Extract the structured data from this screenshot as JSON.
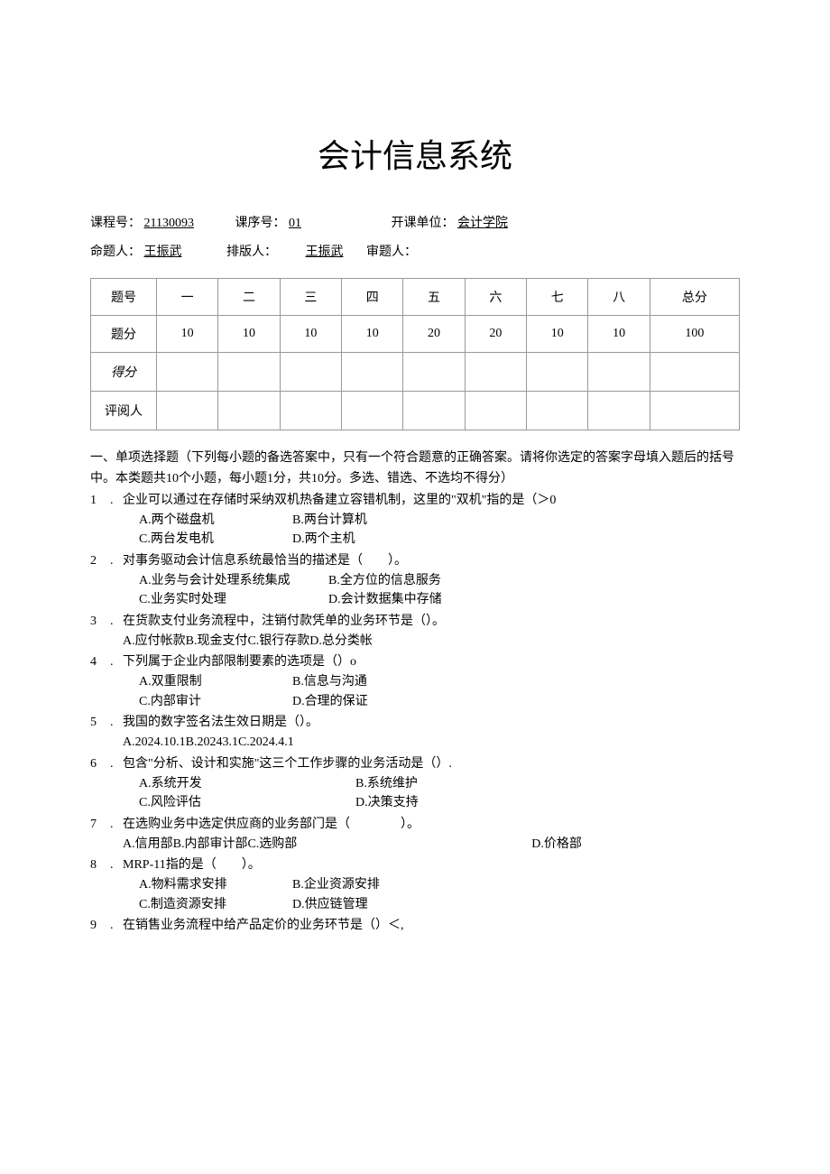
{
  "title": "会计信息系统",
  "meta": {
    "row1": {
      "course_no_label": "课程号：",
      "course_no": "21130093",
      "seq_no_label": "课序号：",
      "seq_no": "01",
      "dept_label": "开课单位：",
      "dept": "会计学院"
    },
    "row2": {
      "author_label": "命题人：",
      "author": "王振武",
      "typeset_label": "排版人：",
      "typeset": "王振武",
      "reviewer_label": "审题人："
    }
  },
  "score_table": {
    "headers": [
      "题号",
      "一",
      "二",
      "三",
      "四",
      "五",
      "六",
      "七",
      "八",
      "总分"
    ],
    "points_row_label": "题分",
    "points": [
      "10",
      "10",
      "10",
      "10",
      "20",
      "20",
      "10",
      "10",
      "100"
    ],
    "score_row_label": "得分",
    "marker_row_label": "评阅人"
  },
  "section1": {
    "heading": "一、单项选择题（下列每小题的备选答案中，只有一个符合题意的正确答案。请将你选定的答案字母填入题后的括号中。本类题共10个小题，每小题1分，共10分。多选、错选、不选均不得分）",
    "questions": [
      {
        "n": "1",
        "stem": "企业可以通过在存储时采纳双机热备建立容错机制，这里的\"双机\"指的是（＞0",
        "opts": [
          [
            "A.两个磁盘机",
            "B.两台计算机"
          ],
          [
            "C.两台发电机",
            "D.两个主机"
          ]
        ],
        "col_w": "w160"
      },
      {
        "n": "2",
        "stem": "对事务驱动会计信息系统最恰当的描述是（　　）。",
        "opts": [
          [
            "A.业务与会计处理系统集成",
            "B.全方位的信息服务"
          ],
          [
            "C.业务实时处理",
            "D.会计数据集中存储"
          ]
        ],
        "col_w": "w200"
      },
      {
        "n": "3",
        "stem": "在货款支付业务流程中，注销付款凭单的业务环节是（）。",
        "inline_opts": "A.应付帐款B.现金支付C.银行存款D.总分类帐"
      },
      {
        "n": "4",
        "stem": "下列属于企业内部限制要素的选项是（）o",
        "opts": [
          [
            "A.双重限制",
            "B.信息与沟通"
          ],
          [
            "C.内部审计",
            "D.合理的保证"
          ]
        ],
        "col_w": "w160"
      },
      {
        "n": "5",
        "stem": "我国的数字签名法生效日期是（）。",
        "inline_opts": "A.2024.10.1B.20243.1C.2024.4.1"
      },
      {
        "n": "6",
        "stem": "包含\"分析、设计和实施\"这三个工作步骤的业务活动是（）.",
        "opts": [
          [
            "A.系统开发",
            "B.系统维护"
          ],
          [
            "C.风险评估",
            "D.决策支持"
          ]
        ],
        "col_w": "w240"
      },
      {
        "n": "7",
        "stem": "在选购业务中选定供应商的业务部门是（　　　　）。",
        "inline_opts_wide": {
          "abc": "A.信用部B.内部审计部C.选购部",
          "d": "D.价格部"
        }
      },
      {
        "n": "8",
        "stem": "MRP-11指的是（　　）。",
        "opts": [
          [
            "A.物料需求安排",
            "B.企业资源安排"
          ],
          [
            "C.制造资源安排",
            "D.供应链管理"
          ]
        ],
        "col_w": "w160"
      },
      {
        "n": "9",
        "stem": "在销售业务流程中给产品定价的业务环节是（）＜,"
      }
    ]
  }
}
